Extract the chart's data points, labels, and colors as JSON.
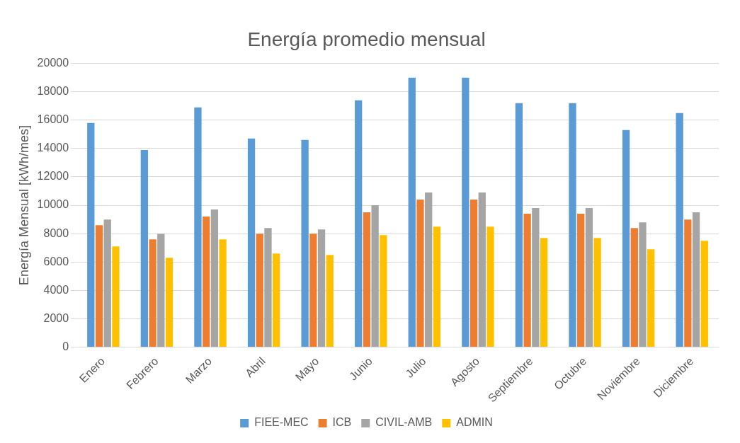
{
  "chart_data": {
    "type": "bar",
    "title": "Energía promedio mensual",
    "ylabel": "Energía Mensual [kWh/mes]",
    "categories": [
      "Enero",
      "Febrero",
      "Marzo",
      "Abril",
      "Mayo",
      "Junio",
      "Julio",
      "Agosto",
      "Septiembre",
      "Octubre",
      "Noviembre",
      "Diciembre"
    ],
    "series": [
      {
        "name": "FIEE-MEC",
        "color": "#5b9bd5",
        "values": [
          15800,
          13900,
          16900,
          14700,
          14600,
          17400,
          19000,
          19000,
          17200,
          17200,
          15300,
          16500
        ]
      },
      {
        "name": "ICB",
        "color": "#ed7d31",
        "values": [
          8600,
          7600,
          9200,
          8000,
          8000,
          9500,
          10400,
          10400,
          9400,
          9400,
          8400,
          9000
        ]
      },
      {
        "name": "CIVIL-AMB",
        "color": "#a5a5a5",
        "values": [
          9000,
          8000,
          9700,
          8400,
          8300,
          10000,
          10900,
          10900,
          9800,
          9800,
          8800,
          9500
        ]
      },
      {
        "name": "ADMIN",
        "color": "#ffc000",
        "values": [
          7100,
          6300,
          7600,
          6600,
          6500,
          7900,
          8500,
          8500,
          7700,
          7700,
          6900,
          7500
        ]
      }
    ],
    "ylim": [
      0,
      20000
    ],
    "yticks": [
      0,
      2000,
      4000,
      6000,
      8000,
      10000,
      12000,
      14000,
      16000,
      18000,
      20000
    ],
    "grid": "y",
    "legend": "bottom"
  }
}
